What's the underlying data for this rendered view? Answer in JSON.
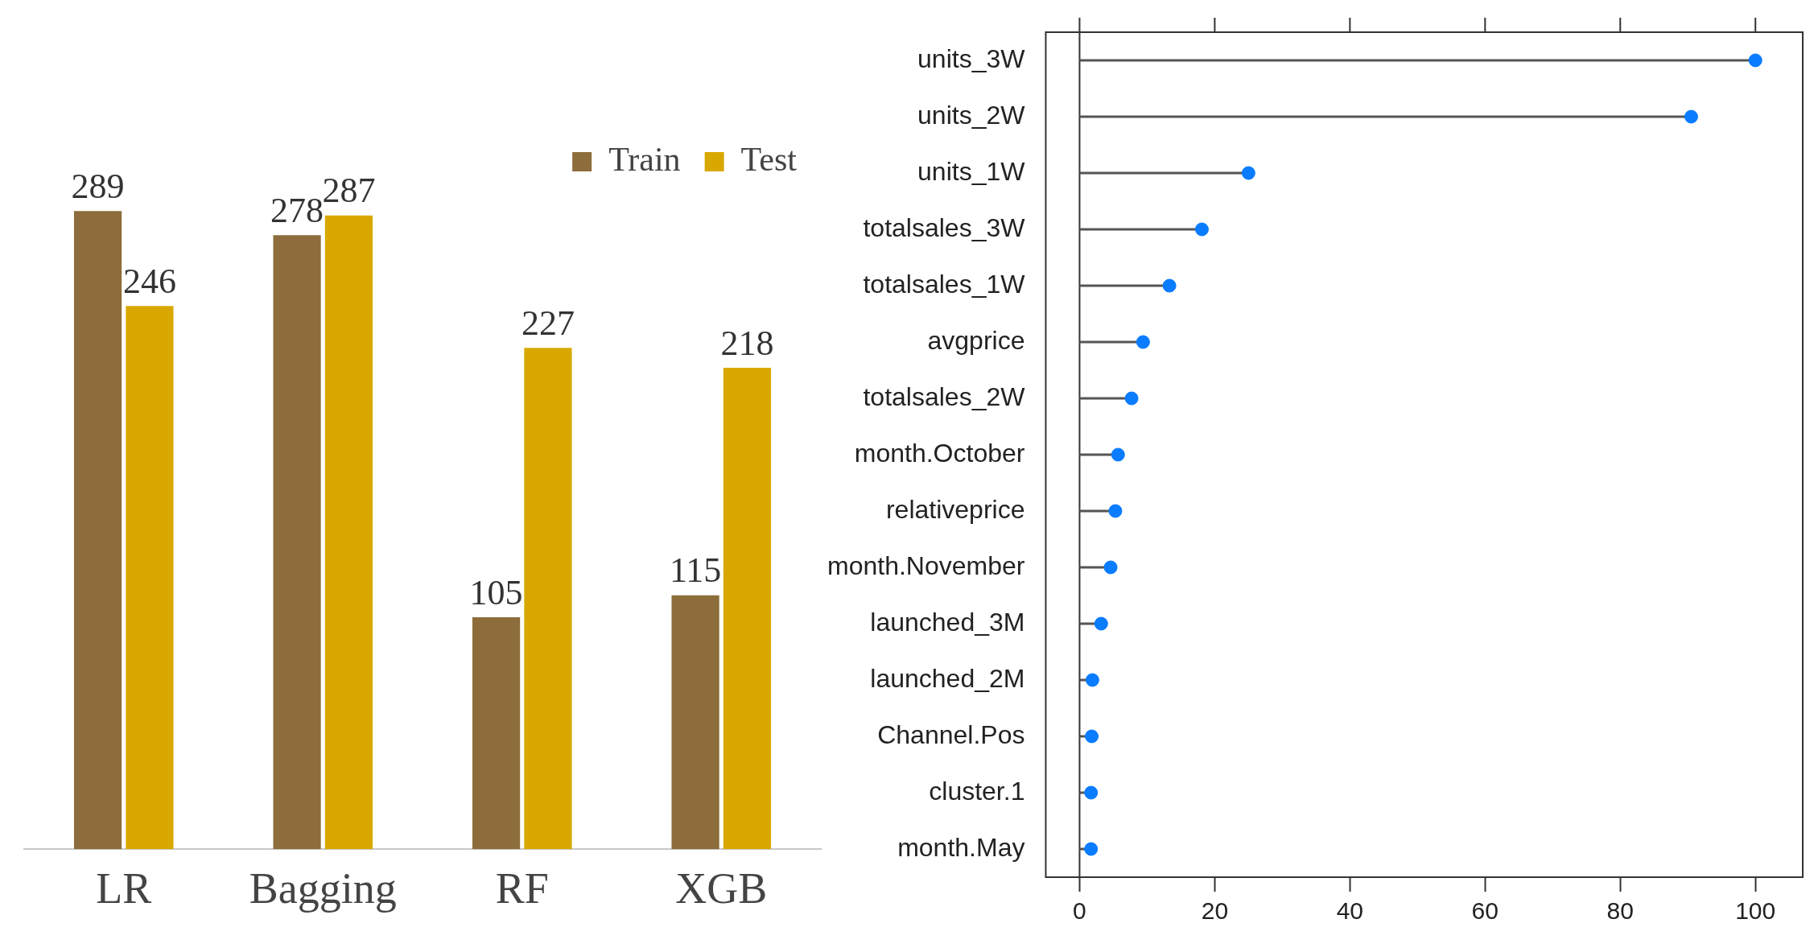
{
  "chart_data": [
    {
      "type": "bar",
      "categories": [
        "LR",
        "Bagging",
        "RF",
        "XGB"
      ],
      "series": [
        {
          "name": "Train",
          "color": "#8c6d3b",
          "values": [
            289,
            278,
            105,
            115
          ]
        },
        {
          "name": "Test",
          "color": "#d9a800",
          "values": [
            246,
            287,
            227,
            218
          ]
        }
      ],
      "data_labels": true,
      "legend": "top right",
      "grid": false,
      "tick_labels": "x"
    },
    {
      "type": "lollipop",
      "orientation": "horizontal",
      "categories": [
        "units_3W",
        "units_2W",
        "units_1W",
        "totalsales_3W",
        "totalsales_1W",
        "avgprice",
        "totalsales_2W",
        "month.October",
        "relativeprice",
        "month.November",
        "launched_3M",
        "launched_2M",
        "Channel.Pos",
        "cluster.1",
        "month.May"
      ],
      "values": [
        100,
        90.5,
        25.0,
        18.1,
        13.3,
        9.4,
        7.7,
        5.7,
        5.3,
        4.6,
        3.2,
        1.9,
        1.8,
        1.7,
        1.7
      ],
      "color": "#0a7cff",
      "marker": "circle",
      "xlim": [
        -5,
        107
      ],
      "xticks": [
        0,
        20,
        40,
        60,
        80,
        100
      ],
      "ref_lines": [
        {
          "axis": "x",
          "value": 0,
          "color": "#333333"
        }
      ],
      "grid": false,
      "legend": false
    }
  ]
}
